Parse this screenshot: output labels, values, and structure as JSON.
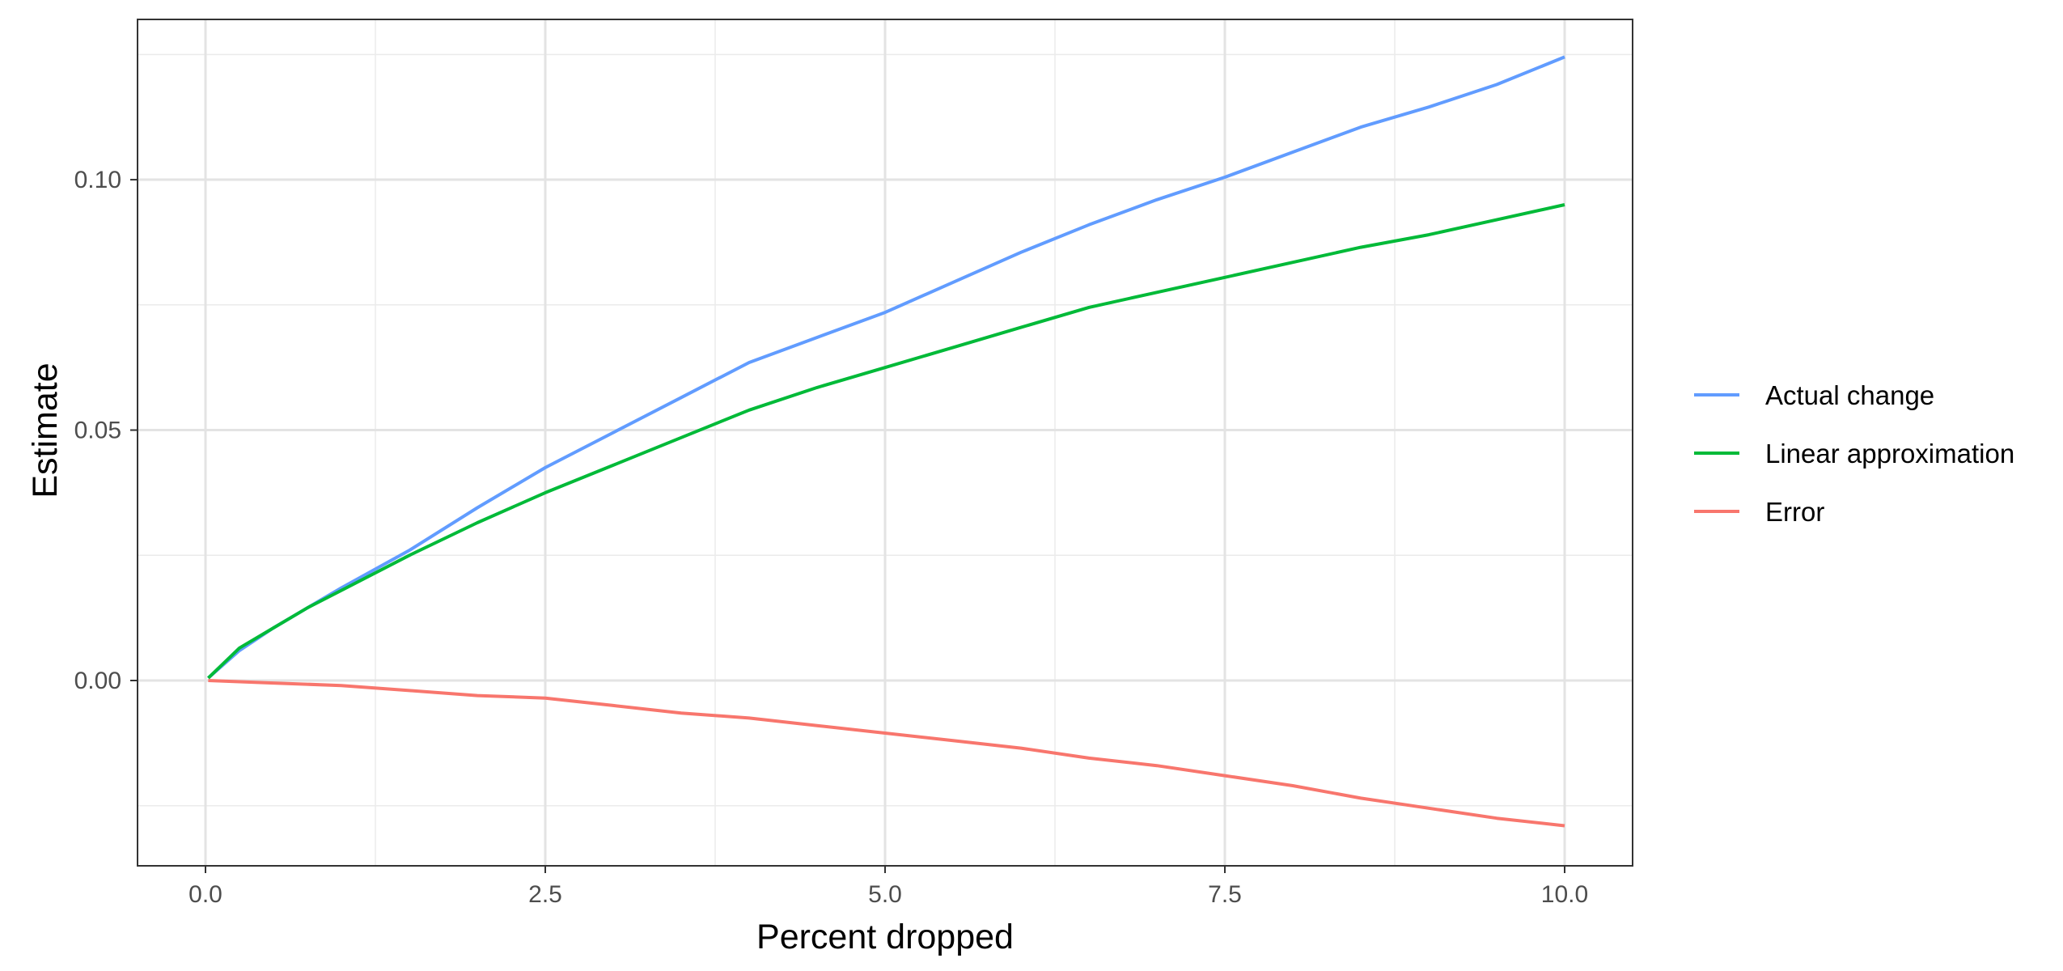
{
  "chart_data": {
    "type": "line",
    "title": "",
    "xlabel": "Percent dropped",
    "ylabel": "Estimate",
    "xlim": [
      -0.5,
      10.5
    ],
    "ylim": [
      -0.037,
      0.132
    ],
    "x_ticks": [
      {
        "value": 0.0,
        "label": "0.0"
      },
      {
        "value": 2.5,
        "label": "2.5"
      },
      {
        "value": 5.0,
        "label": "5.0"
      },
      {
        "value": 7.5,
        "label": "7.5"
      },
      {
        "value": 10.0,
        "label": "10.0"
      }
    ],
    "y_ticks": [
      {
        "value": 0.0,
        "label": "0.00"
      },
      {
        "value": 0.05,
        "label": "0.05"
      },
      {
        "value": 0.1,
        "label": "0.10"
      }
    ],
    "x_minor_ticks": [
      1.25,
      3.75,
      6.25,
      8.75
    ],
    "y_minor_ticks": [
      -0.025,
      0.025,
      0.075,
      0.125
    ],
    "grid": true,
    "legend_position": "right",
    "series": [
      {
        "name": "Actual change",
        "color": "#619CFF",
        "x": [
          0.02,
          0.25,
          0.5,
          0.75,
          1.0,
          1.5,
          2.0,
          2.5,
          3.0,
          3.5,
          4.0,
          4.5,
          5.0,
          5.5,
          6.0,
          6.5,
          7.0,
          7.5,
          8.0,
          8.5,
          9.0,
          9.5,
          10.0
        ],
        "y": [
          0.0005,
          0.006,
          0.0105,
          0.0145,
          0.0185,
          0.026,
          0.0345,
          0.0425,
          0.0495,
          0.0565,
          0.0635,
          0.0685,
          0.0735,
          0.0795,
          0.0855,
          0.091,
          0.096,
          0.1005,
          0.1055,
          0.1105,
          0.1145,
          0.119,
          0.1245
        ]
      },
      {
        "name": "Linear approximation",
        "color": "#00BA38",
        "x": [
          0.02,
          0.25,
          0.5,
          0.75,
          1.0,
          1.5,
          2.0,
          2.5,
          3.0,
          3.5,
          4.0,
          4.5,
          5.0,
          5.5,
          6.0,
          6.5,
          7.0,
          7.5,
          8.0,
          8.5,
          9.0,
          9.5,
          10.0
        ],
        "y": [
          0.0005,
          0.0065,
          0.0105,
          0.0145,
          0.018,
          0.025,
          0.0315,
          0.0375,
          0.043,
          0.0485,
          0.054,
          0.0585,
          0.0625,
          0.0665,
          0.0705,
          0.0745,
          0.0775,
          0.0805,
          0.0835,
          0.0865,
          0.089,
          0.092,
          0.095
        ]
      },
      {
        "name": "Error",
        "color": "#F8766D",
        "x": [
          0.02,
          0.5,
          1.0,
          1.5,
          2.0,
          2.5,
          3.0,
          3.5,
          4.0,
          4.5,
          5.0,
          5.5,
          6.0,
          6.5,
          7.0,
          7.5,
          8.0,
          8.5,
          9.0,
          9.5,
          10.0
        ],
        "y": [
          0.0,
          -0.0005,
          -0.001,
          -0.002,
          -0.003,
          -0.0035,
          -0.005,
          -0.0065,
          -0.0075,
          -0.009,
          -0.0105,
          -0.012,
          -0.0135,
          -0.0155,
          -0.017,
          -0.019,
          -0.021,
          -0.0235,
          -0.0255,
          -0.0275,
          -0.029
        ]
      }
    ]
  }
}
